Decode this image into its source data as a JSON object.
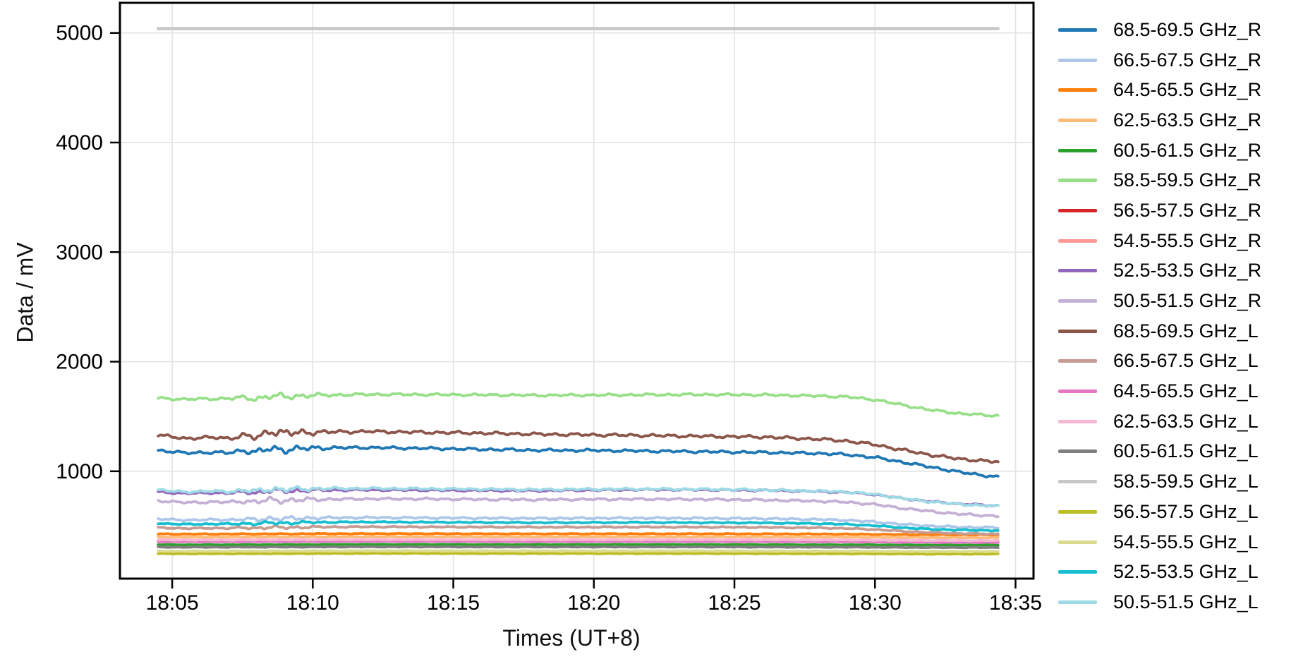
{
  "chart_data": {
    "type": "line",
    "title": "",
    "xlabel": "Times (UT+8)",
    "ylabel": "Data / mV",
    "grid": true,
    "legend_position": "right-outside",
    "x_tick_labels": [
      "18:05",
      "18:10",
      "18:15",
      "18:20",
      "18:25",
      "18:30",
      "18:35"
    ],
    "x_tick_minutes": [
      5,
      10,
      15,
      20,
      25,
      30,
      35
    ],
    "y_tick_labels": [
      "1000",
      "2000",
      "3000",
      "4000",
      "5000"
    ],
    "y_ticks": [
      1000,
      2000,
      3000,
      4000,
      5000
    ],
    "x_range_minutes": [
      3.14,
      35.64
    ],
    "y_range_mv": [
      20,
      5275
    ],
    "time_base": "18:00",
    "x_minutes": [
      4.5,
      5,
      5.5,
      6,
      6.5,
      7,
      7.5,
      8,
      8.5,
      9,
      10,
      12,
      14,
      16,
      18,
      20,
      22,
      24,
      26,
      28,
      29,
      30,
      31,
      32,
      33,
      34.4
    ],
    "series": [
      {
        "name": "68.5-69.5 GHz_R",
        "color": "#1f77b4",
        "noise": 2.2,
        "values": [
          1192,
          1178,
          1166,
          1172,
          1170,
          1168,
          1190,
          1172,
          1208,
          1196,
          1212,
          1216,
          1209,
          1200,
          1192,
          1190,
          1184,
          1178,
          1172,
          1163,
          1152,
          1126,
          1082,
          1038,
          992,
          945
        ]
      },
      {
        "name": "66.5-67.5 GHz_R",
        "color": "#aec7e8",
        "noise": 1.5,
        "values": [
          565,
          558,
          554,
          556,
          558,
          556,
          562,
          557,
          571,
          566,
          574,
          577,
          575,
          572,
          570,
          572,
          573,
          571,
          568,
          560,
          553,
          537,
          515,
          500,
          490,
          485
        ]
      },
      {
        "name": "64.5-65.5 GHz_R",
        "color": "#ff7f0e",
        "noise": 0.6,
        "values": [
          428,
          427,
          426,
          427,
          427,
          427,
          428,
          427,
          429,
          428,
          430,
          430,
          430,
          429,
          429,
          429,
          429,
          429,
          428,
          427,
          426,
          424,
          422,
          421,
          420,
          420
        ]
      },
      {
        "name": "62.5-63.5 GHz_R",
        "color": "#ffbb78",
        "noise": 0.5,
        "values": [
          400,
          399,
          399,
          399,
          399,
          399,
          400,
          399,
          401,
          400,
          401,
          402,
          402,
          401,
          401,
          401,
          401,
          401,
          400,
          399,
          399,
          397,
          395,
          394,
          393,
          393
        ]
      },
      {
        "name": "60.5-61.5 GHz_R",
        "color": "#2ca02c",
        "noise": 0.5,
        "values": [
          330,
          329,
          329,
          329,
          329,
          329,
          330,
          329,
          331,
          330,
          331,
          332,
          332,
          331,
          331,
          331,
          331,
          331,
          330,
          329,
          329,
          328,
          327,
          326,
          326,
          326
        ]
      },
      {
        "name": "58.5-59.5 GHz_R",
        "color": "#98df8a",
        "noise": 2.0,
        "values": [
          1668,
          1661,
          1657,
          1660,
          1662,
          1664,
          1672,
          1661,
          1686,
          1681,
          1693,
          1701,
          1700,
          1697,
          1693,
          1695,
          1698,
          1700,
          1697,
          1687,
          1679,
          1653,
          1603,
          1558,
          1527,
          1505
        ]
      },
      {
        "name": "56.5-57.5 GHz_R",
        "color": "#d62728",
        "noise": 0.5,
        "values": [
          368,
          367,
          367,
          367,
          367,
          367,
          368,
          367,
          369,
          368,
          369,
          370,
          370,
          369,
          369,
          369,
          369,
          369,
          368,
          367,
          367,
          365,
          363,
          362,
          361,
          361
        ]
      },
      {
        "name": "54.5-55.5 GHz_R",
        "color": "#ff9896",
        "noise": 0.5,
        "values": [
          360,
          359,
          359,
          359,
          359,
          359,
          360,
          359,
          361,
          360,
          361,
          362,
          362,
          361,
          361,
          361,
          361,
          361,
          360,
          359,
          359,
          357,
          355,
          354,
          353,
          353
        ]
      },
      {
        "name": "52.5-53.5 GHz_R",
        "color": "#9467bd",
        "noise": 1.5,
        "values": [
          812,
          803,
          798,
          801,
          803,
          801,
          810,
          804,
          823,
          818,
          827,
          829,
          827,
          824,
          822,
          828,
          832,
          830,
          826,
          815,
          807,
          787,
          751,
          723,
          702,
          684
        ]
      },
      {
        "name": "50.5-51.5 GHz_R",
        "color": "#c5b0d5",
        "noise": 1.8,
        "values": [
          731,
          721,
          714,
          717,
          719,
          717,
          727,
          720,
          739,
          733,
          743,
          748,
          747,
          743,
          740,
          744,
          746,
          743,
          738,
          727,
          718,
          697,
          661,
          633,
          609,
          590
        ]
      },
      {
        "name": "68.5-69.5 GHz_L",
        "color": "#8c564b",
        "noise": 2.5,
        "values": [
          1332,
          1312,
          1300,
          1306,
          1308,
          1300,
          1326,
          1306,
          1370,
          1346,
          1356,
          1363,
          1355,
          1348,
          1338,
          1332,
          1326,
          1319,
          1313,
          1293,
          1276,
          1243,
          1193,
          1148,
          1112,
          1084
        ]
      },
      {
        "name": "66.5-67.5 GHz_L",
        "color": "#c49c94",
        "noise": 1.0,
        "values": [
          486,
          481,
          478,
          480,
          481,
          480,
          484,
          481,
          489,
          486,
          491,
          493,
          492,
          491,
          490,
          490,
          491,
          490,
          488,
          483,
          478,
          468,
          452,
          440,
          432,
          427
        ]
      },
      {
        "name": "64.5-65.5 GHz_L",
        "color": "#e377c2",
        "noise": 0.6,
        "values": [
          358,
          357,
          357,
          357,
          357,
          357,
          358,
          357,
          359,
          358,
          359,
          360,
          360,
          359,
          359,
          359,
          359,
          359,
          358,
          357,
          357,
          355,
          353,
          352,
          351,
          351
        ]
      },
      {
        "name": "62.5-63.5 GHz_L",
        "color": "#f7b6d2",
        "noise": 0.5,
        "values": [
          374,
          373,
          373,
          373,
          373,
          373,
          374,
          373,
          375,
          374,
          375,
          376,
          376,
          375,
          375,
          375,
          375,
          375,
          374,
          373,
          373,
          371,
          369,
          368,
          367,
          367
        ]
      },
      {
        "name": "60.5-61.5 GHz_L",
        "color": "#7f7f7f",
        "noise": 0.5,
        "values": [
          308,
          307,
          307,
          307,
          307,
          307,
          308,
          307,
          309,
          308,
          309,
          310,
          310,
          309,
          309,
          309,
          309,
          309,
          308,
          307,
          307,
          306,
          305,
          304,
          304,
          304
        ]
      },
      {
        "name": "58.5-59.5 GHz_L",
        "color": "#c7c7c7",
        "noise": 0,
        "values": [
          5040,
          5040,
          5040,
          5040,
          5040,
          5040,
          5040,
          5040,
          5040,
          5040,
          5040,
          5040,
          5040,
          5040,
          5040,
          5040,
          5040,
          5040,
          5040,
          5040,
          5040,
          5040,
          5040,
          5040,
          5040,
          5040
        ]
      },
      {
        "name": "56.5-57.5 GHz_L",
        "color": "#bcbd22",
        "noise": 0.5,
        "values": [
          248,
          247,
          247,
          247,
          247,
          247,
          248,
          247,
          249,
          248,
          249,
          250,
          250,
          249,
          249,
          249,
          249,
          249,
          248,
          247,
          247,
          246,
          245,
          244,
          244,
          244
        ]
      },
      {
        "name": "54.5-55.5 GHz_L",
        "color": "#dbdb8d",
        "noise": 0.5,
        "values": [
          272,
          271,
          271,
          271,
          271,
          271,
          272,
          271,
          273,
          272,
          273,
          274,
          274,
          273,
          273,
          273,
          273,
          273,
          272,
          271,
          271,
          270,
          269,
          268,
          268,
          268
        ]
      },
      {
        "name": "52.5-53.5 GHz_L",
        "color": "#17becf",
        "noise": 1.0,
        "values": [
          525,
          519,
          516,
          518,
          519,
          518,
          523,
          519,
          531,
          527,
          534,
          537,
          535,
          533,
          531,
          532,
          533,
          531,
          529,
          522,
          516,
          503,
          484,
          471,
          463,
          459
        ]
      },
      {
        "name": "50.5-51.5 GHz_L",
        "color": "#9edae5",
        "noise": 1.8,
        "values": [
          829,
          818,
          812,
          815,
          817,
          815,
          825,
          818,
          839,
          833,
          841,
          843,
          840,
          836,
          832,
          836,
          838,
          835,
          830,
          819,
          811,
          789,
          751,
          721,
          699,
          680
        ]
      }
    ]
  }
}
